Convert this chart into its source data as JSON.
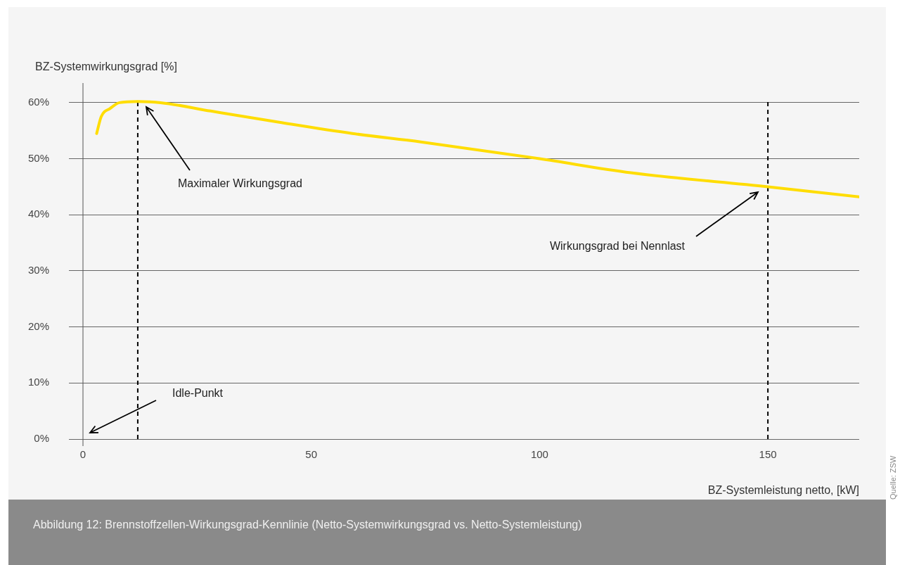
{
  "chart_data": {
    "type": "line",
    "xlabel": "BZ-Systemleistung netto, [kW]",
    "ylabel": "BZ-Systemwirkungsgrad [%]",
    "xlim": [
      0,
      170
    ],
    "xticks": [
      0,
      50,
      100,
      150
    ],
    "ylim": [
      0,
      63.5
    ],
    "yticks": [
      {
        "value": 0,
        "label": "0%"
      },
      {
        "value": 10,
        "label": "10%"
      },
      {
        "value": 20,
        "label": "20%"
      },
      {
        "value": 30,
        "label": "30%"
      },
      {
        "value": 40,
        "label": "40%"
      },
      {
        "value": 50,
        "label": "50%"
      },
      {
        "value": 60,
        "label": "60%"
      }
    ],
    "x": [
      3,
      4,
      6,
      8,
      12,
      17,
      28,
      43,
      59,
      74,
      100,
      120,
      150,
      170
    ],
    "series": [
      {
        "color": "#ffdd00",
        "values": [
          54.5,
          57.5,
          59,
          60,
          60.2,
          60,
          58.5,
          56.5,
          54.5,
          53,
          50,
          47.5,
          45,
          43.2
        ]
      }
    ],
    "grid": "y",
    "legend": false,
    "marker": "none",
    "line_style": "solid",
    "ref_lines": [
      {
        "axis": "x",
        "value": 12,
        "color": "#000000",
        "line_style": "dashed"
      },
      {
        "axis": "x",
        "value": 150,
        "color": "#000000",
        "line_style": "dashed"
      }
    ],
    "annotations": [
      "Maximaler Wirkungsgrad",
      "Wirkungsgrad bei Nennlast",
      "Idle-Punkt",
      "Abbildung 12: Brennstoffzellen-Wirkungsgrad-Kennlinie (Netto-Systemwirkungsgrad vs. Netto-Systemleistung)",
      "Quelle: ZSW"
    ]
  }
}
